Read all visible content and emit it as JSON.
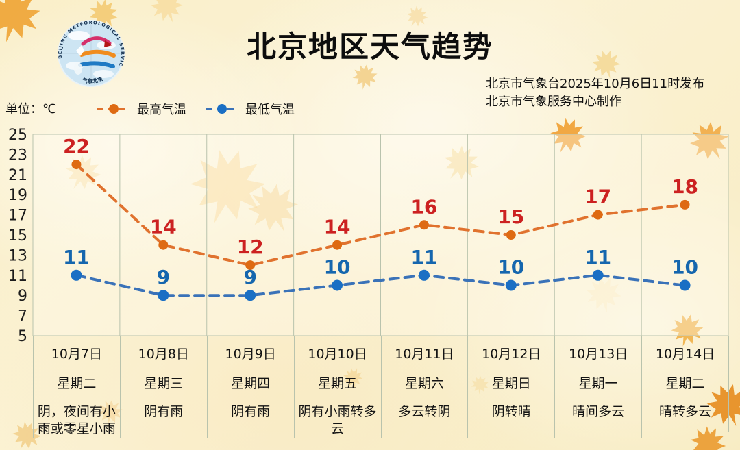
{
  "header": {
    "title": "北京地区天气趋势",
    "issued_line1": "北京市气象台2025年10月6日11时发布",
    "issued_line2": "北京市气象服务中心制作",
    "logo": {
      "arc_text": "BEIJING METEOROLOGICAL SERVICE",
      "bottom_text": "气象北京"
    }
  },
  "unit_label": "单位：℃",
  "legend": [
    {
      "label": "最高气温",
      "color": "#E0722E",
      "marker_color": "#DE6A12"
    },
    {
      "label": "最低气温",
      "color": "#3A72B8",
      "marker_color": "#1B6FC4"
    }
  ],
  "chart_data": {
    "type": "line",
    "title": "北京地区天气趋势",
    "unit": "℃",
    "x_dates": [
      "10月7日",
      "10月8日",
      "10月9日",
      "10月10日",
      "10月11日",
      "10月12日",
      "10月13日",
      "10月14日"
    ],
    "x_weekdays": [
      "星期二",
      "星期三",
      "星期四",
      "星期五",
      "星期六",
      "星期日",
      "星期一",
      "星期二"
    ],
    "series": [
      {
        "name": "最高气温",
        "values": [
          22,
          14,
          12,
          14,
          16,
          15,
          17,
          18
        ],
        "line_color": "#E0722E",
        "marker_color": "#DE6A12",
        "label_color": "#CC2121",
        "marker_r": 7
      },
      {
        "name": "最低气温",
        "values": [
          11,
          9,
          9,
          10,
          11,
          10,
          11,
          10
        ],
        "line_color": "#3A72B8",
        "marker_color": "#1B6FC4",
        "label_color": "#1566AE",
        "marker_r": 8
      }
    ],
    "ylim": [
      5,
      25
    ],
    "yticks": [
      25,
      23,
      21,
      19,
      17,
      15,
      13,
      11,
      9,
      7,
      5
    ],
    "grid": "vertical-only",
    "legend_position": "top-left",
    "line_style": "dashed",
    "border_color": "#b9c3ad"
  },
  "table": {
    "columns": [
      {
        "date": "10月7日",
        "weekday": "星期二",
        "weather": "阴，夜间有小雨或零星小雨"
      },
      {
        "date": "10月8日",
        "weekday": "星期三",
        "weather": "阴有雨"
      },
      {
        "date": "10月9日",
        "weekday": "星期四",
        "weather": "阴有雨"
      },
      {
        "date": "10月10日",
        "weekday": "星期五",
        "weather": "阴有小雨转多云"
      },
      {
        "date": "10月11日",
        "weekday": "星期六",
        "weather": "多云转阴"
      },
      {
        "date": "10月12日",
        "weekday": "星期日",
        "weather": "阴转晴"
      },
      {
        "date": "10月13日",
        "weekday": "星期一",
        "weather": "晴间多云"
      },
      {
        "date": "10月14日",
        "weekday": "星期二",
        "weather": "晴转多云"
      }
    ]
  }
}
